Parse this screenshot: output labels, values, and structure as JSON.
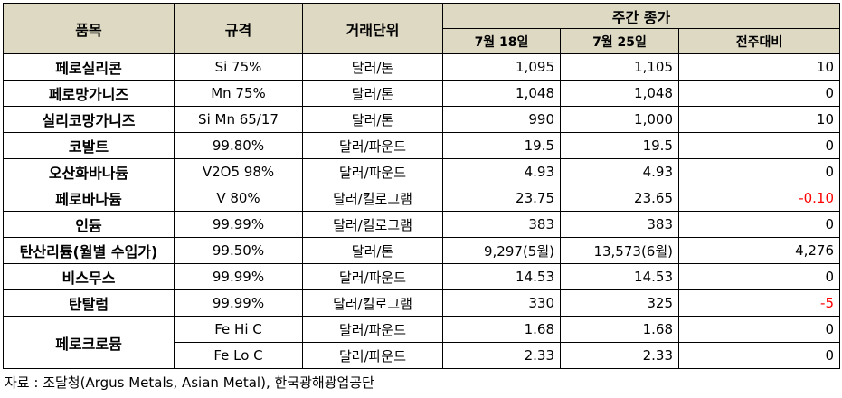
{
  "header": {
    "item": "품목",
    "spec": "규격",
    "unit": "거래단위",
    "weekly_close": "주간 종가",
    "jul18": "7월 18일",
    "jul25": "7월 25일",
    "change": "전주대비"
  },
  "rows": [
    {
      "item": "페로실리콘",
      "spec": "Si 75%",
      "unit": "달러/톤",
      "jul18": "1,095",
      "jul25": "1,105",
      "change": "10",
      "negative": false
    },
    {
      "item": "페로망가니즈",
      "spec": "Mn 75%",
      "unit": "달러/톤",
      "jul18": "1,048",
      "jul25": "1,048",
      "change": "0",
      "negative": false
    },
    {
      "item": "실리코망가니즈",
      "spec": "Si Mn 65/17",
      "unit": "달러/톤",
      "jul18": "990",
      "jul25": "1,000",
      "change": "10",
      "negative": false
    },
    {
      "item": "코발트",
      "spec": "99.80%",
      "unit": "달러/파운드",
      "jul18": "19.5",
      "jul25": "19.5",
      "change": "0",
      "negative": false
    },
    {
      "item": "오산화바나듐",
      "spec": "V2O5 98%",
      "unit": "달러/파운드",
      "jul18": "4.93",
      "jul25": "4.93",
      "change": "0",
      "negative": false
    },
    {
      "item": "페로바나듐",
      "spec": "V 80%",
      "unit": "달러/킬로그램",
      "jul18": "23.75",
      "jul25": "23.65",
      "change": "-0.10",
      "negative": true
    },
    {
      "item": "인듐",
      "spec": "99.99%",
      "unit": "달러/킬로그램",
      "jul18": "383",
      "jul25": "383",
      "change": "0",
      "negative": false
    },
    {
      "item": "탄산리튬(월별 수입가)",
      "spec": "99.50%",
      "unit": "달러/톤",
      "jul18": "9,297(5월)",
      "jul25": "13,573(6월)",
      "change": "4,276",
      "negative": false
    },
    {
      "item": "비스무스",
      "spec": "99.99%",
      "unit": "달러/파운드",
      "jul18": "14.53",
      "jul25": "14.53",
      "change": "0",
      "negative": false
    },
    {
      "item": "탄탈럼",
      "spec": "99.99%",
      "unit": "달러/킬로그램",
      "jul18": "330",
      "jul25": "325",
      "change": "-5",
      "negative": true
    }
  ],
  "ferrochrome": {
    "item": "페로크로뮴",
    "rows": [
      {
        "spec": "Fe Hi C",
        "unit": "달러/파운드",
        "jul18": "1.68",
        "jul25": "1.68",
        "change": "0"
      },
      {
        "spec": "Fe Lo C",
        "unit": "달러/파운드",
        "jul18": "2.33",
        "jul25": "2.33",
        "change": "0"
      }
    ]
  },
  "source": "자료 : 조달청(Argus Metals, Asian Metal), 한국광해광업공단",
  "colors": {
    "header_bg": "#ddd9c3",
    "negative": "#ff0000"
  }
}
